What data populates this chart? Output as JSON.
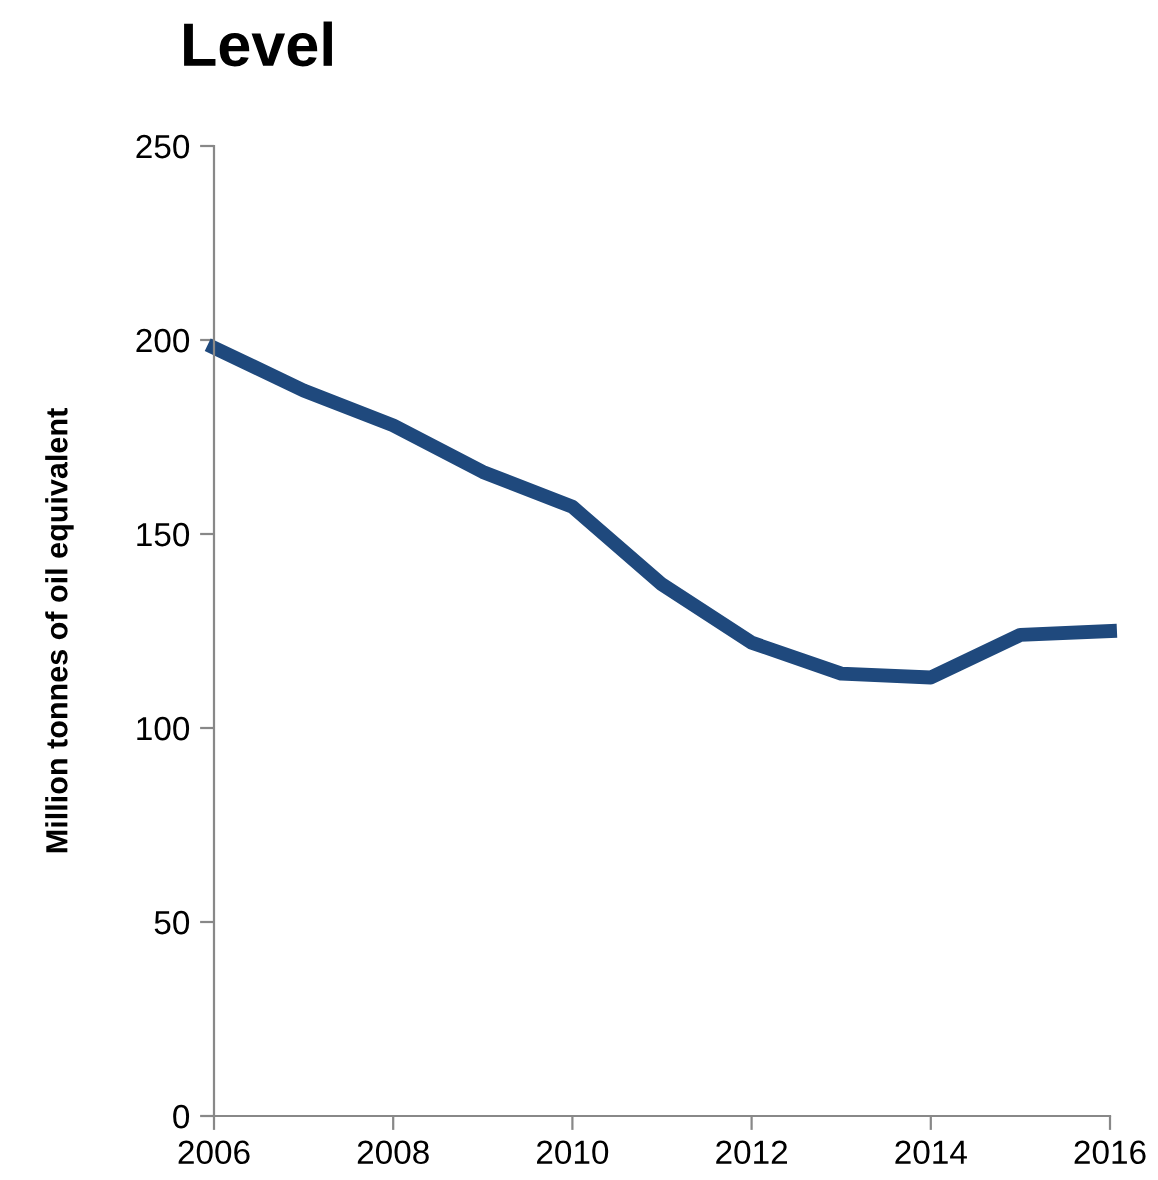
{
  "chart_data": {
    "type": "line",
    "title": "Level",
    "ylabel": "Million tonnes of oil equivalent",
    "x": [
      2006,
      2007,
      2008,
      2009,
      2010,
      2011,
      2012,
      2013,
      2014,
      2015,
      2016
    ],
    "series": [
      {
        "color": "#1f497d",
        "values": [
          198,
          187,
          178,
          166,
          157,
          137,
          122,
          114,
          113,
          124,
          125
        ]
      }
    ],
    "xlim": [
      2006,
      2016
    ],
    "xticks": [
      2006,
      2008,
      2010,
      2012,
      2014,
      2016
    ],
    "ylim": [
      0,
      250
    ],
    "yticks": [
      0,
      50,
      100,
      150,
      200,
      250
    ],
    "grid": false,
    "legend": false,
    "marker": "none",
    "line_style": "solid"
  }
}
